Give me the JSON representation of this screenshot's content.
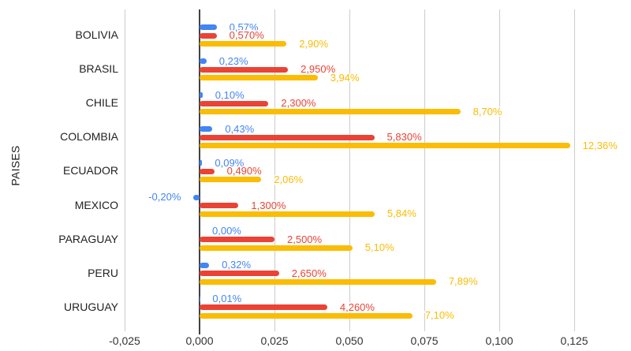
{
  "chart_data": {
    "type": "bar",
    "orientation": "horizontal",
    "title": "",
    "xlabel": "",
    "ylabel": "PAISES",
    "legend": "none",
    "grid": true,
    "categories": [
      "BOLIVIA",
      "BRASIL",
      "CHILE",
      "COLOMBIA",
      "ECUADOR",
      "MEXICO",
      "PARAGUAY",
      "PERU",
      "URUGUAY"
    ],
    "series": [
      {
        "name": "blue",
        "color": "#4285F4",
        "values": [
          0.0057,
          0.0023,
          0.001,
          0.0043,
          0.0009,
          -0.002,
          0.0,
          0.0032,
          0.0001
        ],
        "labels": [
          "0,57%",
          "0,23%",
          "0,10%",
          "0,43%",
          "0,09%",
          "-0,20%",
          "0,00%",
          "0,32%",
          "0,01%"
        ]
      },
      {
        "name": "red",
        "color": "#EA4335",
        "values": [
          0.0057,
          0.0295,
          0.023,
          0.0583,
          0.0049,
          0.013,
          0.025,
          0.0265,
          0.0426
        ],
        "labels": [
          "0,570%",
          "2,950%",
          "2,300%",
          "5,830%",
          "0,490%",
          "1,300%",
          "2,500%",
          "2,650%",
          "4,260%"
        ]
      },
      {
        "name": "yellow",
        "color": "#FBBC04",
        "values": [
          0.029,
          0.0394,
          0.087,
          0.1236,
          0.0206,
          0.0584,
          0.051,
          0.0789,
          0.071
        ],
        "labels": [
          "2,90%",
          "3,94%",
          "8,70%",
          "12,36%",
          "2,06%",
          "5,84%",
          "5,10%",
          "7,89%",
          "7,10%"
        ]
      }
    ],
    "x_axis": {
      "range": [
        -0.025,
        0.125
      ],
      "ticks": [
        -0.025,
        0,
        0.025,
        0.05,
        0.075,
        0.1,
        0.125
      ],
      "tick_labels": [
        "-0,025",
        "0,000",
        "0,025",
        "0,050",
        "0,075",
        "0,100",
        "0,125"
      ]
    },
    "colors": {
      "gridline": "#cccccc",
      "zero_line": "#424242",
      "axis_text": "#333333",
      "category_text": "#222222"
    }
  }
}
